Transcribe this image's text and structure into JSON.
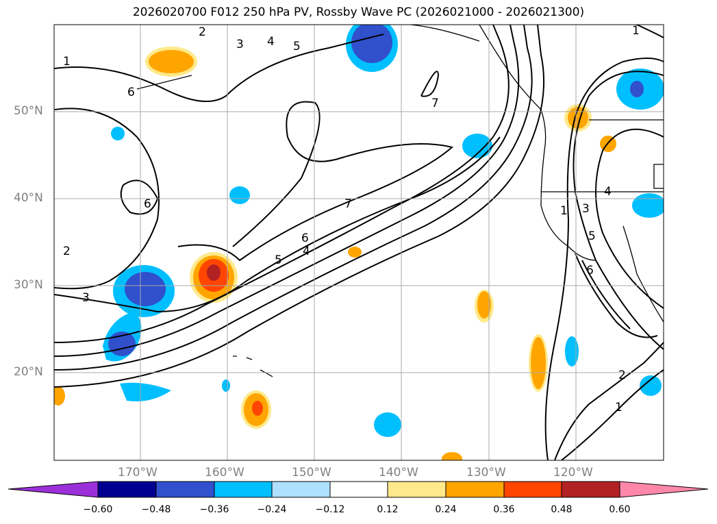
{
  "title": "2026020700 F012 250 hPa PV, Rossby Wave PC (2026021000 - 2026021300)",
  "map": {
    "lat_labels": [
      "50°N",
      "40°N",
      "30°N",
      "20°N"
    ],
    "lon_labels": [
      "170°W",
      "160°W",
      "150°W",
      "140°W",
      "130°W",
      "120°W"
    ],
    "pv_contour_labels": [
      "1",
      "2",
      "3",
      "3",
      "4",
      "5",
      "6",
      "6",
      "7",
      "4",
      "5",
      "6",
      "7",
      "1",
      "2",
      "3",
      "4",
      "5",
      "6",
      "1",
      "2",
      "1"
    ]
  },
  "colorbar": {
    "ticks": [
      "−0.60",
      "−0.48",
      "−0.36",
      "−0.24",
      "−0.12",
      "0.12",
      "0.24",
      "0.36",
      "0.48",
      "0.60"
    ],
    "colors": [
      "#9b30d9",
      "#000090",
      "#3050cc",
      "#00bfff",
      "#afe0ff",
      "#ffffff",
      "#ffe98a",
      "#ffa500",
      "#ff4500",
      "#b22222",
      "#ff88aa"
    ]
  }
}
